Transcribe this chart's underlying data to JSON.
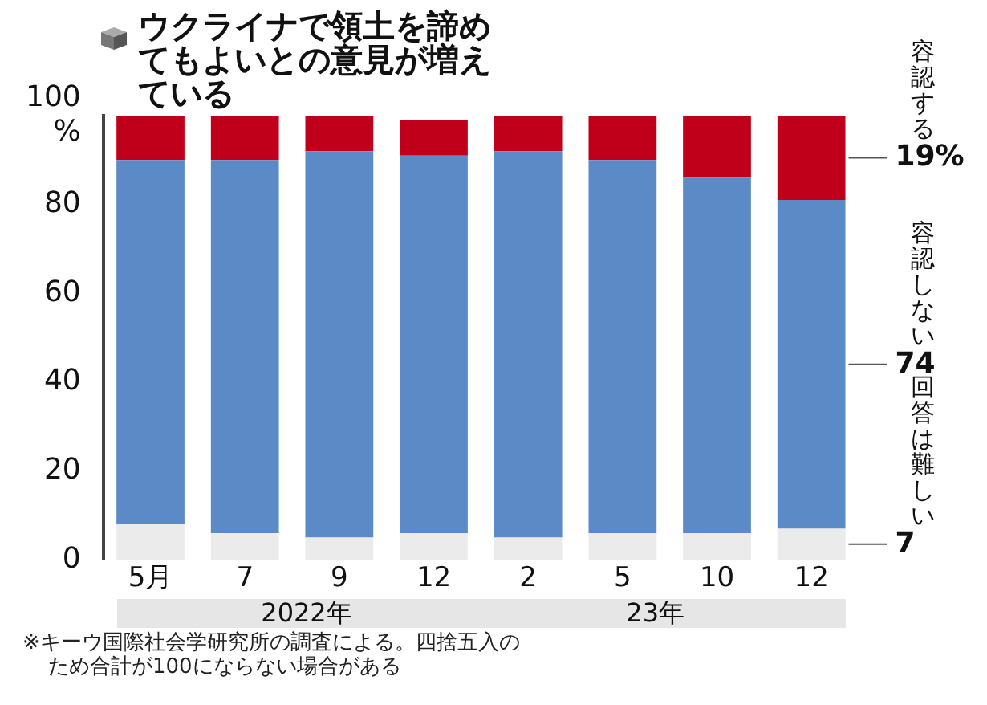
{
  "chart_data": {
    "type": "bar",
    "stacked": true,
    "title": "ウクライナで領土を諦めてもよいとの意見が増えている",
    "categories": [
      "5月",
      "7",
      "9",
      "12",
      "2",
      "5",
      "10",
      "12"
    ],
    "series": [
      {
        "name": "回答は難しい",
        "color": "#ebebeb",
        "values": [
          8,
          6,
          5,
          6,
          5,
          6,
          6,
          7
        ],
        "value_labels": [
          null,
          null,
          null,
          null,
          null,
          null,
          null,
          "7"
        ]
      },
      {
        "name": "容認しない",
        "color": "#5b8ac6",
        "values": [
          82,
          84,
          87,
          85,
          87,
          84,
          80,
          74
        ],
        "value_labels": [
          null,
          null,
          null,
          null,
          null,
          null,
          null,
          "74"
        ]
      },
      {
        "name": "容認する",
        "color": "#c0001a",
        "values": [
          10,
          10,
          8,
          8,
          8,
          10,
          14,
          19
        ],
        "value_labels": [
          null,
          null,
          null,
          null,
          null,
          null,
          null,
          "19%"
        ]
      }
    ],
    "ylim": [
      0,
      100
    ],
    "yticks": [
      0,
      20,
      40,
      60,
      80,
      {
        "value": 100,
        "label": "100\n%"
      }
    ],
    "grid": false,
    "legend": false,
    "annotations": [
      "2022年",
      "23年",
      "※キーウ国際社会学研究所の調査による。四捨五入のため合計が100にならない場合がある"
    ]
  }
}
